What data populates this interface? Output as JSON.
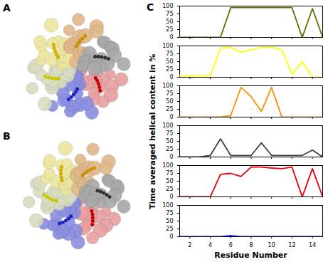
{
  "panel_labels": [
    "A",
    "B",
    "C"
  ],
  "chart_data": {
    "type": "line",
    "x": [
      1,
      2,
      3,
      4,
      5,
      6,
      7,
      8,
      9,
      10,
      11,
      12,
      13,
      14,
      15
    ],
    "xlim": [
      1,
      15
    ],
    "xticks": [
      2,
      4,
      6,
      8,
      10,
      12,
      14
    ],
    "ylim": [
      0,
      100
    ],
    "yticks": [
      0,
      25,
      50,
      75,
      100
    ],
    "xlabel": "Residue Number",
    "ylabel": "Time averaged helical content in %",
    "series": [
      {
        "color": "#6b6b00",
        "values": [
          0,
          0,
          0,
          0,
          0,
          95,
          95,
          95,
          95,
          95,
          95,
          95,
          0,
          92,
          0
        ]
      },
      {
        "color": "#ffff00",
        "values": [
          5,
          5,
          5,
          5,
          92,
          95,
          80,
          88,
          95,
          95,
          88,
          10,
          50,
          0,
          0
        ]
      },
      {
        "color": "#ff8c00",
        "values": [
          0,
          0,
          0,
          0,
          0,
          5,
          95,
          65,
          18,
          95,
          0,
          0,
          0,
          0,
          0
        ]
      },
      {
        "color": "#404040",
        "values": [
          0,
          0,
          0,
          5,
          58,
          5,
          5,
          5,
          45,
          5,
          5,
          5,
          5,
          22,
          0
        ]
      },
      {
        "color": "#e8000b",
        "values": [
          0,
          0,
          0,
          0,
          72,
          75,
          65,
          95,
          95,
          92,
          90,
          95,
          0,
          90,
          0
        ]
      },
      {
        "color": "#0000ff",
        "values": [
          0,
          0,
          0,
          0,
          0,
          3,
          0,
          0,
          0,
          0,
          0,
          0,
          0,
          0,
          0
        ]
      }
    ]
  }
}
